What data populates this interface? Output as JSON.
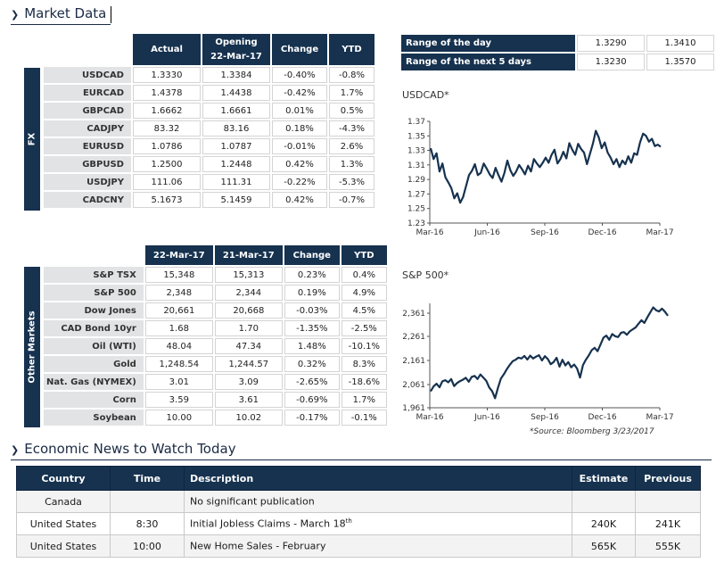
{
  "market_data": {
    "title": "Market Data"
  },
  "fx": {
    "side_label": "FX",
    "headers": [
      "Actual",
      "Opening\n22-Mar-17",
      "Change",
      "YTD"
    ],
    "rows": [
      {
        "name": "USDCAD",
        "actual": "1.3330",
        "opening": "1.3384",
        "change": "-0.40%",
        "ytd": "-0.8%"
      },
      {
        "name": "EURCAD",
        "actual": "1.4378",
        "opening": "1.4438",
        "change": "-0.42%",
        "ytd": "1.7%"
      },
      {
        "name": "GBPCAD",
        "actual": "1.6662",
        "opening": "1.6661",
        "change": "0.01%",
        "ytd": "0.5%"
      },
      {
        "name": "CADJPY",
        "actual": "83.32",
        "opening": "83.16",
        "change": "0.18%",
        "ytd": "-4.3%"
      },
      {
        "name": "EURUSD",
        "actual": "1.0786",
        "opening": "1.0787",
        "change": "-0.01%",
        "ytd": "2.6%"
      },
      {
        "name": "GBPUSD",
        "actual": "1.2500",
        "opening": "1.2448",
        "change": "0.42%",
        "ytd": "1.3%"
      },
      {
        "name": "USDJPY",
        "actual": "111.06",
        "opening": "111.31",
        "change": "-0.22%",
        "ytd": "-5.3%"
      },
      {
        "name": "CADCNY",
        "actual": "5.1673",
        "opening": "5.1459",
        "change": "0.42%",
        "ytd": "-0.7%"
      }
    ]
  },
  "other": {
    "side_label": "Other Markets",
    "headers": [
      "22-Mar-17",
      "21-Mar-17",
      "Change",
      "YTD"
    ],
    "rows": [
      {
        "name": "S&P TSX",
        "a": "15,348",
        "b": "15,313",
        "change": "0.23%",
        "ytd": "0.4%"
      },
      {
        "name": "S&P 500",
        "a": "2,348",
        "b": "2,344",
        "change": "0.19%",
        "ytd": "4.9%"
      },
      {
        "name": "Dow Jones",
        "a": "20,661",
        "b": "20,668",
        "change": "-0.03%",
        "ytd": "4.5%"
      },
      {
        "name": "CAD Bond 10yr",
        "a": "1.68",
        "b": "1.70",
        "change": "-1.35%",
        "ytd": "-2.5%"
      },
      {
        "name": "Oil (WTI)",
        "a": "48.04",
        "b": "47.34",
        "change": "1.48%",
        "ytd": "-10.1%"
      },
      {
        "name": "Gold",
        "a": "1,248.54",
        "b": "1,244.57",
        "change": "0.32%",
        "ytd": "8.3%"
      },
      {
        "name": "Nat. Gas (NYMEX)",
        "a": "3.01",
        "b": "3.09",
        "change": "-2.65%",
        "ytd": "-18.6%"
      },
      {
        "name": "Corn",
        "a": "3.59",
        "b": "3.61",
        "change": "-0.69%",
        "ytd": "1.7%"
      },
      {
        "name": "Soybean",
        "a": "10.00",
        "b": "10.02",
        "change": "-0.17%",
        "ytd": "-0.1%"
      }
    ]
  },
  "range": {
    "rows": [
      {
        "label": "Range of the day",
        "low": "1.3290",
        "high": "1.3410"
      },
      {
        "label": "Range of the next 5 days",
        "low": "1.3230",
        "high": "1.3570"
      }
    ]
  },
  "chart_data": [
    {
      "type": "line",
      "title": "USDCAD*",
      "x_ticks": [
        "Mar-16",
        "Jun-16",
        "Sep-16",
        "Dec-16",
        "Mar-17"
      ],
      "y_ticks": [
        "1.37",
        "1.35",
        "1.33",
        "1.31",
        "1.29",
        "1.27",
        "1.25",
        "1.23"
      ],
      "ylim": [
        1.23,
        1.37
      ],
      "grid": false,
      "values": [
        1.333,
        1.318,
        1.326,
        1.301,
        1.312,
        1.293,
        1.286,
        1.278,
        1.264,
        1.271,
        1.258,
        1.266,
        1.281,
        1.296,
        1.302,
        1.311,
        1.296,
        1.299,
        1.312,
        1.305,
        1.297,
        1.292,
        1.306,
        1.296,
        1.287,
        1.299,
        1.316,
        1.303,
        1.295,
        1.301,
        1.31,
        1.304,
        1.297,
        1.309,
        1.301,
        1.318,
        1.312,
        1.307,
        1.313,
        1.32,
        1.313,
        1.324,
        1.331,
        1.312,
        1.318,
        1.328,
        1.319,
        1.34,
        1.331,
        1.324,
        1.339,
        1.332,
        1.327,
        1.311,
        1.325,
        1.339,
        1.357,
        1.348,
        1.333,
        1.341,
        1.327,
        1.32,
        1.311,
        1.318,
        1.307,
        1.316,
        1.311,
        1.322,
        1.313,
        1.326,
        1.324,
        1.341,
        1.353,
        1.35,
        1.342,
        1.346,
        1.336,
        1.338,
        1.335
      ]
    },
    {
      "type": "line",
      "title": "S&P 500*",
      "x_ticks": [
        "Mar-16",
        "Jun-16",
        "Sep-16",
        "Dec-16",
        "Mar-17"
      ],
      "y_ticks": [
        "2,361",
        "2,261",
        "2,161",
        "2,061",
        "1,961"
      ],
      "ylim": [
        1961,
        2400
      ],
      "grid": false,
      "values": [
        2030,
        2051,
        2062,
        2047,
        2072,
        2077,
        2068,
        2082,
        2052,
        2065,
        2073,
        2079,
        2087,
        2070,
        2091,
        2095,
        2082,
        2101,
        2088,
        2074,
        2046,
        2030,
        2001,
        2045,
        2084,
        2102,
        2123,
        2141,
        2157,
        2163,
        2172,
        2168,
        2179,
        2164,
        2180,
        2168,
        2176,
        2182,
        2160,
        2178,
        2166,
        2144,
        2153,
        2171,
        2134,
        2163,
        2139,
        2153,
        2131,
        2143,
        2126,
        2088,
        2140,
        2163,
        2181,
        2203,
        2213,
        2199,
        2227,
        2256,
        2264,
        2247,
        2271,
        2262,
        2258,
        2276,
        2279,
        2268,
        2282,
        2291,
        2299,
        2315,
        2329,
        2318,
        2341,
        2362,
        2383,
        2371,
        2366,
        2378,
        2365,
        2348
      ]
    }
  ],
  "source": "*Source: Bloomberg  3/23/2017",
  "news": {
    "title": "Economic News to Watch Today",
    "headers": [
      "Country",
      "Time",
      "Description",
      "Estimate",
      "Previous"
    ],
    "rows": [
      {
        "country": "Canada",
        "time": "",
        "desc": "No significant publication",
        "sup": "",
        "estimate": "",
        "previous": ""
      },
      {
        "country": "United States",
        "time": "8:30",
        "desc": "Initial Jobless Claims - March 18",
        "sup": "th",
        "estimate": "240K",
        "previous": "241K"
      },
      {
        "country": "United States",
        "time": "10:00",
        "desc": "New Home Sales - February",
        "sup": "",
        "estimate": "565K",
        "previous": "555K"
      }
    ]
  }
}
